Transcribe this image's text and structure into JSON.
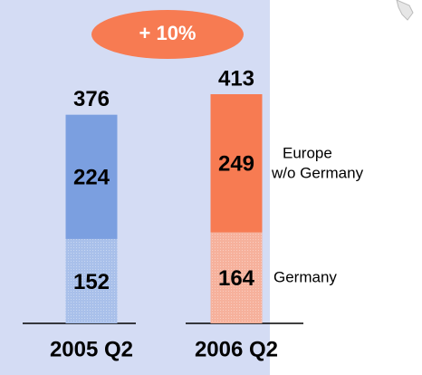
{
  "chart_data": {
    "type": "stacked_bar",
    "annotation": "+ 10%",
    "categories": [
      "2005 Q2",
      "2006 Q2"
    ],
    "totals": [
      376,
      413
    ],
    "series": [
      {
        "name": "Germany",
        "colors": [
          "#a9c0ea",
          "#f6b19c"
        ],
        "values": [
          152,
          164
        ]
      },
      {
        "name": "Europe w/o Germany",
        "colors": [
          "#7b9fe0",
          "#f77b52"
        ],
        "values": [
          224,
          249
        ]
      }
    ]
  }
}
